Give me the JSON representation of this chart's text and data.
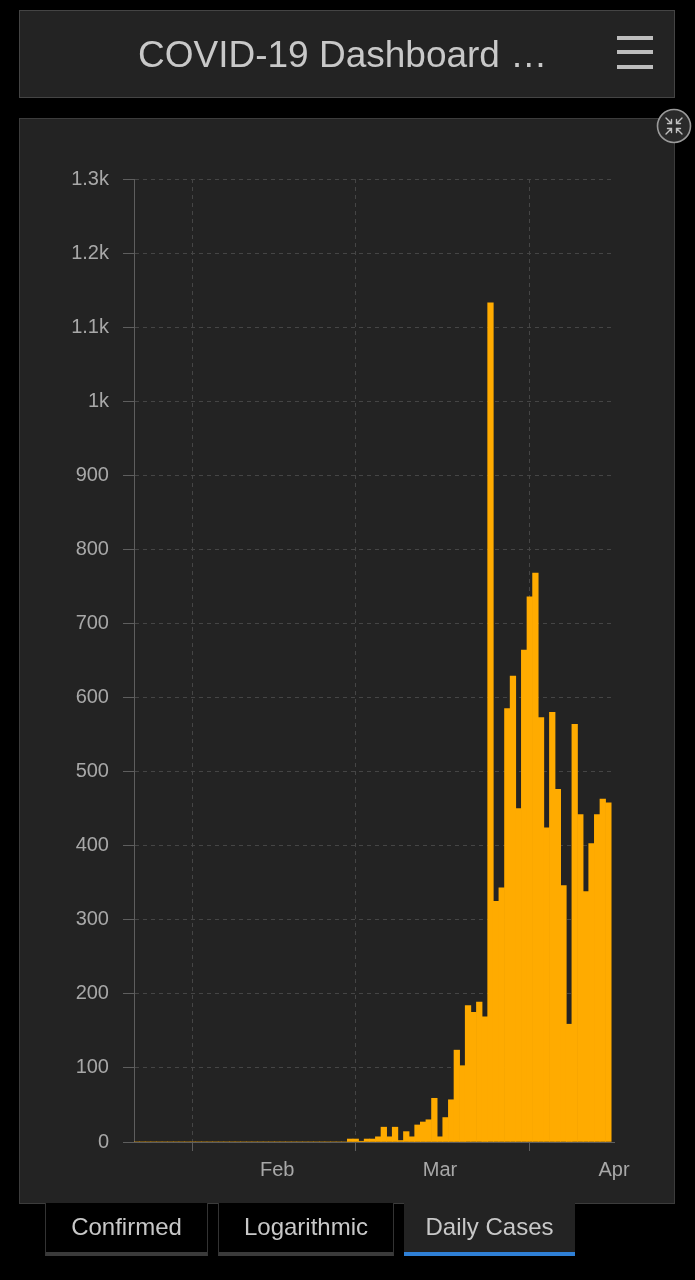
{
  "chart_data": {
    "type": "bar",
    "title": "COVID-19 Dashboard …",
    "x": [
      "--01-22",
      "--01-23",
      "--01-24",
      "--01-25",
      "--01-26",
      "--01-27",
      "--01-28",
      "--01-29",
      "--01-30",
      "--01-31",
      "--02-01",
      "--02-02",
      "--02-03",
      "--02-04",
      "--02-05",
      "--02-06",
      "--02-07",
      "--02-08",
      "--02-09",
      "--02-10",
      "--02-11",
      "--02-12",
      "--02-13",
      "--02-14",
      "--02-15",
      "--02-16",
      "--02-17",
      "--02-18",
      "--02-19",
      "--02-20",
      "--02-21",
      "--02-22",
      "--02-23",
      "--02-24",
      "--02-25",
      "--02-26",
      "--02-27",
      "--02-28",
      "--02-29",
      "--03-01",
      "--03-02",
      "--03-03",
      "--03-04",
      "--03-05",
      "--03-06",
      "--03-07",
      "--03-08",
      "--03-09",
      "--03-10",
      "--03-11",
      "--03-12",
      "--03-13",
      "--03-14",
      "--03-15",
      "--03-16",
      "--03-17",
      "--03-18",
      "--03-19",
      "--03-20",
      "--03-21",
      "--03-22",
      "--03-23",
      "--03-24",
      "--03-25",
      "--03-26",
      "--03-27",
      "--03-28",
      "--03-29",
      "--03-30",
      "--03-31",
      "--04-01",
      "--04-02",
      "--04-03",
      "--04-04",
      "--04-05",
      "--04-06",
      "--04-07",
      "--04-08",
      "--04-09",
      "--04-10",
      "--04-11",
      "--04-12",
      "--04-13",
      "--04-14",
      "--04-15"
    ],
    "values": [
      0,
      0,
      0,
      0,
      0,
      0,
      0,
      0,
      0,
      0,
      0,
      0,
      0,
      0,
      0,
      0,
      0,
      0,
      0,
      0,
      0,
      0,
      0,
      0,
      0,
      0,
      0,
      0,
      0,
      0,
      0,
      0,
      0,
      0,
      0,
      0,
      0,
      0,
      4,
      4,
      1,
      4,
      4,
      7,
      20,
      7,
      20,
      2,
      14,
      7,
      23,
      27,
      30,
      59,
      7,
      33,
      57,
      124,
      103,
      184,
      175,
      189,
      169,
      1133,
      325,
      343,
      585,
      629,
      450,
      664,
      736,
      768,
      573,
      424,
      580,
      476,
      346,
      159,
      564,
      442,
      338,
      403,
      442,
      463,
      458
    ],
    "color": "#ffab00",
    "xlim": [
      "--01-21T12:00",
      "--04-16"
    ],
    "xticks": [
      {
        "value": "--02-01",
        "label": null
      },
      {
        "value": "--02-16",
        "label": "Feb"
      },
      {
        "value": "--03-01",
        "label": null
      },
      {
        "value": "--03-16",
        "label": "Mar"
      },
      {
        "value": "--04-01",
        "label": null
      },
      {
        "value": "--04-16",
        "label": "Apr"
      }
    ],
    "ylim": [
      0,
      1300
    ],
    "yticks": [
      0,
      100,
      200,
      300,
      400,
      500,
      600,
      700,
      800,
      900,
      {
        "value": 1000,
        "label": "1k"
      },
      {
        "value": 1100,
        "label": "1.1k"
      },
      {
        "value": 1200,
        "label": "1.2k"
      },
      {
        "value": 1300,
        "label": "1.3k"
      }
    ],
    "grid": true,
    "annotations": [
      "Confirmed",
      "Logarithmic",
      "Daily Cases"
    ]
  }
}
